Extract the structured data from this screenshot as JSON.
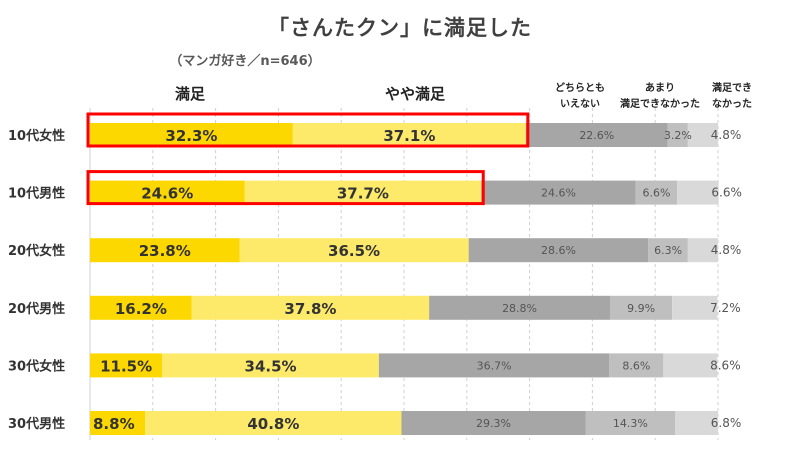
{
  "chart_data": {
    "type": "bar",
    "stacked": true,
    "percent": true,
    "orientation": "horizontal",
    "title": "「さんたクン」に満足した",
    "subtitle": "（マンガ好き／n=646）",
    "categories": [
      "10代女性",
      "10代男性",
      "20代女性",
      "20代男性",
      "30代女性",
      "30代男性"
    ],
    "series": [
      {
        "name": "満足",
        "color": "#FCD800",
        "values": [
          32.3,
          24.6,
          23.8,
          16.2,
          11.5,
          8.8
        ]
      },
      {
        "name": "やや満足",
        "color": "#FDE96A",
        "values": [
          37.1,
          37.7,
          36.5,
          37.8,
          34.5,
          40.8
        ]
      },
      {
        "name": "どちらとも いえない",
        "color": "#A6A6A6",
        "values": [
          22.6,
          24.6,
          28.6,
          28.8,
          36.7,
          29.3
        ]
      },
      {
        "name": "あまり 満足できなかった",
        "color": "#BFBFBF",
        "values": [
          3.2,
          6.6,
          6.3,
          9.9,
          8.6,
          14.3
        ]
      },
      {
        "name": "満足でき なかった",
        "color": "#D9D9D9",
        "values": [
          4.8,
          6.6,
          4.8,
          7.2,
          8.6,
          6.8
        ]
      }
    ],
    "highlighted_categories": [
      "10代女性",
      "10代男性"
    ],
    "highlight_color": "#FF0000",
    "legend": [
      {
        "lines": [
          "満足"
        ]
      },
      {
        "lines": [
          "やや満足"
        ]
      },
      {
        "lines": [
          "どちらとも",
          "いえない"
        ]
      },
      {
        "lines": [
          "あまり",
          "満足できなかった"
        ]
      },
      {
        "lines": [
          "満足でき",
          "なかった"
        ]
      }
    ],
    "legend_position": "top",
    "grid": true
  }
}
